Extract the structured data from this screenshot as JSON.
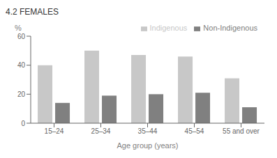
{
  "chart_data": {
    "type": "bar",
    "title": "4.2 FEMALES",
    "xlabel": "Age group (years)",
    "ylabel": "%",
    "categories": [
      "15–24",
      "25–34",
      "35–44",
      "45–54",
      "55 and over"
    ],
    "series": [
      {
        "name": "Indigenous",
        "color": "#c8c8c8",
        "values": [
          40,
          50,
          47,
          46,
          31
        ]
      },
      {
        "name": "Non-Indigenous",
        "color": "#808080",
        "values": [
          14,
          19,
          20,
          21,
          11
        ]
      }
    ],
    "ylim": [
      0,
      60
    ],
    "yticks": [
      0,
      20,
      40,
      60
    ],
    "grid": false,
    "legend": "upper right"
  }
}
